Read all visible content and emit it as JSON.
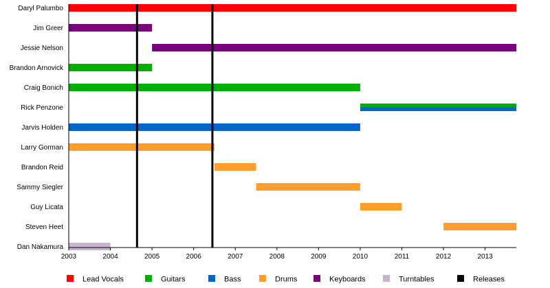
{
  "chart_data": {
    "type": "timeline",
    "x_unit": "year",
    "xlim": [
      2003,
      2013.75
    ],
    "x_ticks": [
      "2003",
      "2004",
      "2005",
      "2006",
      "2007",
      "2008",
      "2009",
      "2010",
      "2011",
      "2012",
      "2013"
    ],
    "members": [
      {
        "name": "Daryl Palumbo",
        "bars": [
          {
            "role": "Lead Vocals",
            "start": 2003,
            "end": 2013.75
          }
        ]
      },
      {
        "name": "Jim Greer",
        "bars": [
          {
            "role": "Keyboards",
            "start": 2003,
            "end": 2005
          }
        ]
      },
      {
        "name": "Jessie Nelson",
        "bars": [
          {
            "role": "Keyboards",
            "start": 2005,
            "end": 2013.75
          }
        ]
      },
      {
        "name": "Brandon Arnovick",
        "bars": [
          {
            "role": "Guitars",
            "start": 2003,
            "end": 2005
          }
        ]
      },
      {
        "name": "Craig Bonich",
        "bars": [
          {
            "role": "Guitars",
            "start": 2003,
            "end": 2010
          }
        ]
      },
      {
        "name": "Rick Penzone",
        "bars": [
          {
            "role": "Guitars",
            "start": 2010,
            "end": 2013.75
          },
          {
            "role": "Bass",
            "start": 2010,
            "end": 2013.75
          }
        ]
      },
      {
        "name": "Jarvis Holden",
        "bars": [
          {
            "role": "Bass",
            "start": 2003,
            "end": 2010
          }
        ]
      },
      {
        "name": "Larry Gorman",
        "bars": [
          {
            "role": "Drums",
            "start": 2003,
            "end": 2006.5
          }
        ]
      },
      {
        "name": "Brandon Reid",
        "bars": [
          {
            "role": "Drums",
            "start": 2006.5,
            "end": 2007.5
          }
        ]
      },
      {
        "name": "Sammy Siegler",
        "bars": [
          {
            "role": "Drums",
            "start": 2007.5,
            "end": 2010
          }
        ]
      },
      {
        "name": "Guy Licata",
        "bars": [
          {
            "role": "Drums",
            "start": 2010,
            "end": 2011
          }
        ]
      },
      {
        "name": "Steven Heet",
        "bars": [
          {
            "role": "Drums",
            "start": 2012,
            "end": 2013.75
          }
        ]
      },
      {
        "name": "Dan Nakamura",
        "bars": [
          {
            "role": "Turntables",
            "start": 2003,
            "end": 2004
          }
        ]
      }
    ],
    "releases": [
      2004.64,
      2006.45
    ],
    "legend_position": "bottom",
    "legend": [
      {
        "label": "Lead Vocals",
        "color": "#ff0000"
      },
      {
        "label": "Guitars",
        "color": "#00b000"
      },
      {
        "label": "Bass",
        "color": "#0066cc"
      },
      {
        "label": "Drums",
        "color": "#ff9e2c"
      },
      {
        "label": "Keyboards",
        "color": "#7a0080"
      },
      {
        "label": "Turntables",
        "color": "#c8b4d0"
      },
      {
        "label": "Releases",
        "color": "#000000"
      }
    ]
  }
}
